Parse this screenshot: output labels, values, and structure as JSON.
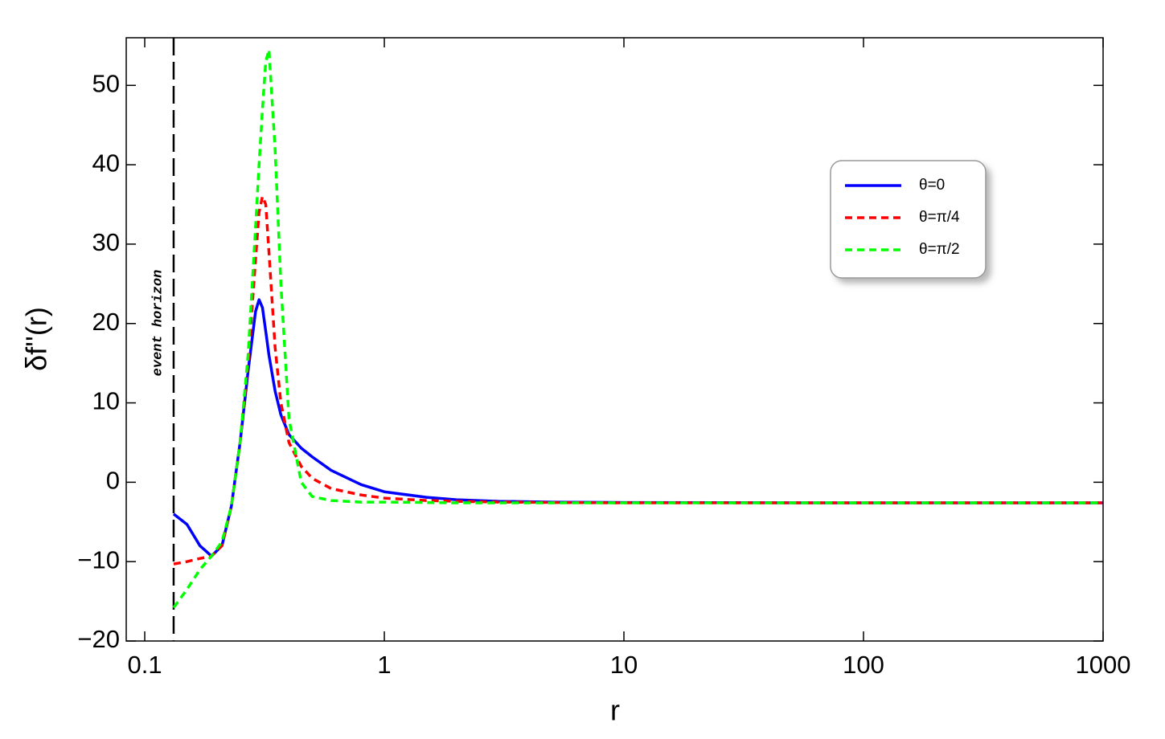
{
  "chart_data": {
    "type": "line",
    "xlabel": "r",
    "ylabel": "δf''(r)",
    "xscale": "log",
    "x": [
      0.132,
      0.15,
      0.17,
      0.19,
      0.21,
      0.23,
      0.25,
      0.27,
      0.29,
      0.3,
      0.31,
      0.32,
      0.33,
      0.35,
      0.37,
      0.4,
      0.45,
      0.5,
      0.6,
      0.8,
      1,
      1.5,
      2,
      3,
      5,
      10,
      100,
      1000
    ],
    "series": [
      {
        "name": "θ=0",
        "color": "#0000ff",
        "style": "solid",
        "values": [
          -4,
          -5.3,
          -8,
          -9.3,
          -8,
          -3,
          5,
          14,
          21.5,
          23,
          22,
          19,
          16,
          11.5,
          8.5,
          6,
          4.3,
          3.2,
          1.5,
          -0.3,
          -1.2,
          -1.9,
          -2.2,
          -2.4,
          -2.5,
          -2.55,
          -2.6,
          -2.6
        ]
      },
      {
        "name": "θ=π/4",
        "color": "#ff0000",
        "style": "dashed",
        "values": [
          -10.3,
          -10,
          -9.6,
          -9.3,
          -8,
          -3,
          5,
          15,
          28,
          34,
          36,
          35,
          29,
          17,
          10,
          5,
          2,
          0.5,
          -0.8,
          -1.6,
          -2,
          -2.3,
          -2.4,
          -2.5,
          -2.55,
          -2.6,
          -2.6,
          -2.6
        ]
      },
      {
        "name": "θ=π/2",
        "color": "#00ff00",
        "style": "dashed",
        "values": [
          -15.8,
          -13.5,
          -11,
          -9.3,
          -7.5,
          -3,
          5,
          16,
          32,
          40,
          47,
          53,
          54.5,
          42,
          25,
          8,
          0,
          -1.8,
          -2.3,
          -2.5,
          -2.5,
          -2.55,
          -2.6,
          -2.6,
          -2.6,
          -2.6,
          -2.6,
          -2.6
        ]
      }
    ],
    "vlines": [
      {
        "x": 0.132,
        "label": "event horizon"
      }
    ],
    "xlim": [
      0.0837,
      1000
    ],
    "ylim": [
      -20,
      56
    ],
    "xticks": [
      0.1,
      1,
      10,
      100,
      1000
    ],
    "yticks": [
      {
        "value": -20,
        "label": "−20"
      },
      {
        "value": -10,
        "label": "−10"
      },
      0,
      10,
      20,
      30,
      40,
      50
    ],
    "legend": "upper-right"
  }
}
